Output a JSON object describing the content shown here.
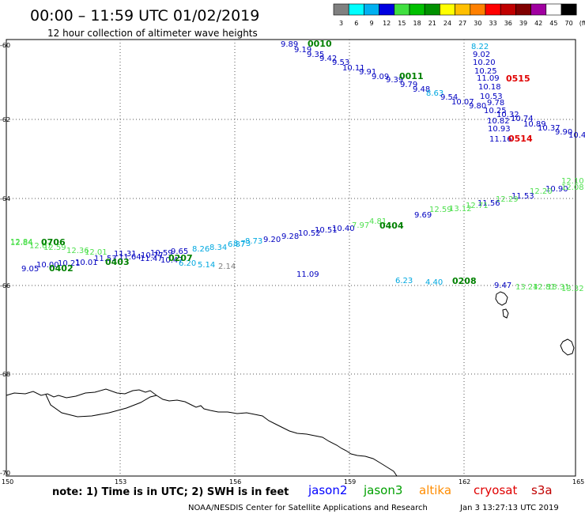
{
  "header": {
    "title": "00:00 – 11:59 UTC 01/02/2019",
    "subtitle": "12 hour collection of altimeter wave heights"
  },
  "legend": {
    "colors": [
      "#808080",
      "#00ffff",
      "#00b0f0",
      "#0000e0",
      "#40e040",
      "#00c000",
      "#009000",
      "#ffff00",
      "#ffbf00",
      "#ff8000",
      "#ff0000",
      "#c00000",
      "#800000",
      "#a000a0",
      "#ffffff",
      "#000000"
    ],
    "labels": [
      "3",
      "6",
      "9",
      "12",
      "15",
      "18",
      "21",
      "24",
      "27",
      "30",
      "33",
      "36",
      "39",
      "42",
      "45",
      "70",
      "(ft)"
    ]
  },
  "axes": {
    "lat_labels": [
      "-60",
      "-62",
      "-64",
      "-66",
      "-68",
      "-70"
    ],
    "lon_labels": [
      "150",
      "153",
      "156",
      "159",
      "162",
      "165"
    ]
  },
  "map": {
    "readings": [
      {
        "t": "9.89",
        "c": "#0000c0"
      },
      {
        "t": "9.19",
        "c": "#0000c0"
      },
      {
        "t": "9.35",
        "c": "#0000c0"
      },
      {
        "t": "9.42",
        "c": "#0000c0"
      },
      {
        "t": "9.53",
        "c": "#0000c0"
      },
      {
        "t": "10.11",
        "c": "#0000c0"
      },
      {
        "t": "9.91",
        "c": "#0000c0"
      },
      {
        "t": "9.09",
        "c": "#0000c0"
      },
      {
        "t": "9.39",
        "c": "#0000c0"
      },
      {
        "t": "9.79",
        "c": "#0000c0"
      },
      {
        "t": "9.48",
        "c": "#0000c0"
      },
      {
        "t": "8.63",
        "c": "#00a8e0"
      },
      {
        "t": "9.54",
        "c": "#0000c0"
      },
      {
        "t": "10.07",
        "c": "#0000c0"
      },
      {
        "t": "9.80",
        "c": "#0000c0"
      },
      {
        "t": "8.22",
        "c": "#00a8e0"
      },
      {
        "t": "9.02",
        "c": "#0000c0"
      },
      {
        "t": "10.20",
        "c": "#0000c0"
      },
      {
        "t": "10.25",
        "c": "#0000c0"
      },
      {
        "t": "11.09",
        "c": "#0000c0"
      },
      {
        "t": "10.18",
        "c": "#0000c0"
      },
      {
        "t": "10.53",
        "c": "#0000c0"
      },
      {
        "t": "9.78",
        "c": "#0000c0"
      },
      {
        "t": "10.25",
        "c": "#0000c0"
      },
      {
        "t": "10.32",
        "c": "#0000c0"
      },
      {
        "t": "10.82",
        "c": "#0000c0"
      },
      {
        "t": "10.74",
        "c": "#0000c0"
      },
      {
        "t": "10.89",
        "c": "#0000c0"
      },
      {
        "t": "10.37",
        "c": "#0000c0"
      },
      {
        "t": "9.90",
        "c": "#0000c0"
      },
      {
        "t": "10.4",
        "c": "#0000c0"
      },
      {
        "t": "10.93",
        "c": "#0000c0"
      },
      {
        "t": "11.16",
        "c": "#0000c0"
      },
      {
        "t": "12.10",
        "c": "#50e050"
      },
      {
        "t": "10.90",
        "c": "#0000c0"
      },
      {
        "t": "12.08",
        "c": "#50e050"
      },
      {
        "t": "12.20",
        "c": "#50e050"
      },
      {
        "t": "11.53",
        "c": "#0000c0"
      },
      {
        "t": "12.29",
        "c": "#50e050"
      },
      {
        "t": "11.56",
        "c": "#0000c0"
      },
      {
        "t": "12.71",
        "c": "#50e050"
      },
      {
        "t": "13.12",
        "c": "#50e050"
      },
      {
        "t": "12.59",
        "c": "#50e050"
      },
      {
        "t": "9.69",
        "c": "#0000c0"
      },
      {
        "t": "4.81",
        "c": "#50e050"
      },
      {
        "t": "7.97",
        "c": "#50e050"
      },
      {
        "t": "10.40",
        "c": "#0000c0"
      },
      {
        "t": "10.51",
        "c": "#0000c0"
      },
      {
        "t": "10.52",
        "c": "#0000c0"
      },
      {
        "t": "9.28",
        "c": "#0000c0"
      },
      {
        "t": "9.20",
        "c": "#0000c0"
      },
      {
        "t": "8.73",
        "c": "#00a8e0"
      },
      {
        "t": "8.73",
        "c": "#00a8e0"
      },
      {
        "t": "6.87",
        "c": "#00a8e0"
      },
      {
        "t": "8.34",
        "c": "#00a8e0"
      },
      {
        "t": "8.26",
        "c": "#00a8e0"
      },
      {
        "t": "9.65",
        "c": "#0000c0"
      },
      {
        "t": "10.59",
        "c": "#0000c0"
      },
      {
        "t": "10.77",
        "c": "#0000c0"
      },
      {
        "t": "11.31",
        "c": "#0000c0"
      },
      {
        "t": "11.64",
        "c": "#0000c0"
      },
      {
        "t": "10.47",
        "c": "#0000c0"
      },
      {
        "t": "11.47",
        "c": "#0000c0"
      },
      {
        "t": "11.53",
        "c": "#0000c0"
      },
      {
        "t": "6.20",
        "c": "#00a8e0"
      },
      {
        "t": "5.14",
        "c": "#00a8e0"
      },
      {
        "t": "2.14",
        "c": "#808080"
      },
      {
        "t": "10.01",
        "c": "#0000c0"
      },
      {
        "t": "10.21",
        "c": "#0000c0"
      },
      {
        "t": "10.00",
        "c": "#0000c0"
      },
      {
        "t": "9.05",
        "c": "#0000c0"
      },
      {
        "t": "12.84",
        "c": "#50e050"
      },
      {
        "t": "12.84",
        "c": "#50e050"
      },
      {
        "t": "12.67",
        "c": "#50e050"
      },
      {
        "t": "12.59",
        "c": "#50e050"
      },
      {
        "t": "12.36",
        "c": "#50e050"
      },
      {
        "t": "12.01",
        "c": "#50e050"
      },
      {
        "t": "11.09",
        "c": "#0000c0"
      },
      {
        "t": "6.23",
        "c": "#00a8e0"
      },
      {
        "t": "4.40",
        "c": "#00a8e0"
      },
      {
        "t": "9.47",
        "c": "#0000c0"
      },
      {
        "t": "13.24",
        "c": "#50e050"
      },
      {
        "t": "12.81",
        "c": "#50e050"
      },
      {
        "t": "13.31",
        "c": "#50e050"
      },
      {
        "t": "13.32",
        "c": "#50e050"
      }
    ],
    "pass_labels": [
      {
        "t": "0010",
        "c": "#008000"
      },
      {
        "t": "0011",
        "c": "#008000"
      },
      {
        "t": "0515",
        "c": "#e00000"
      },
      {
        "t": "0514",
        "c": "#e00000"
      },
      {
        "t": "0404",
        "c": "#008000"
      },
      {
        "t": "0706",
        "c": "#008000"
      },
      {
        "t": "0402",
        "c": "#008000"
      },
      {
        "t": "0403",
        "c": "#008000"
      },
      {
        "t": "0207",
        "c": "#008000"
      },
      {
        "t": "0208",
        "c": "#008000"
      }
    ]
  },
  "footer": {
    "note": "note:  1) Time is in UTC;  2) SWH is in feet",
    "satellites": [
      {
        "name": "jason2",
        "color": "#0000ff"
      },
      {
        "name": "jason3",
        "color": "#00a000"
      },
      {
        "name": "altika",
        "color": "#ff8c00"
      },
      {
        "name": "cryosat",
        "color": "#e00000"
      },
      {
        "name": "s3a",
        "color": "#c00000"
      }
    ],
    "credit": "NOAA/NESDIS Center for Satellite Applications and Research",
    "generated": "Jan  3 13:27:13 UTC 2019"
  }
}
